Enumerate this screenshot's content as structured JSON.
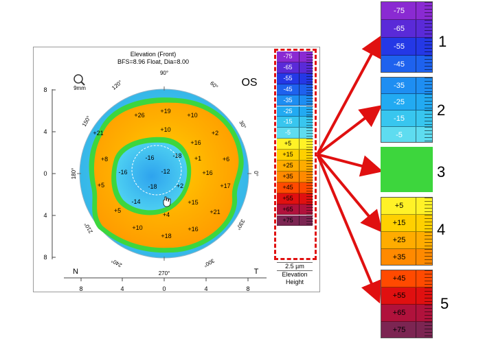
{
  "map": {
    "title": "Elevation (Front)",
    "subtitle": "BFS=8.96 Float, Dia=8.00",
    "eye": "OS",
    "zoom_label": "9mm",
    "axis_top": "90°",
    "angle_labels": [
      "120°",
      "60°",
      "150°",
      "30°",
      "180°",
      "0°",
      "210°",
      "330°",
      "240°",
      "300°",
      "270°"
    ],
    "y_ticks": [
      "8",
      "4",
      "0",
      "4",
      "8"
    ],
    "x_ticks": [
      "8",
      "4",
      "0",
      "4",
      "8"
    ],
    "nasal": "N",
    "temporal": "T",
    "values": [
      "+26",
      "+19",
      "+10",
      "+21",
      "+10",
      "+2",
      "+16",
      "+8",
      "-16",
      "-18",
      "+1",
      "+6",
      "+16",
      "-16",
      "-12",
      "+5",
      "-18",
      "+2",
      "+17",
      "-14",
      "+15",
      "+5",
      "+4",
      "+21",
      "+10",
      "+18",
      "+16"
    ]
  },
  "scale": {
    "rows": [
      {
        "label": "-75",
        "color": "#8a2ad2"
      },
      {
        "label": "-65",
        "color": "#5a2ad8"
      },
      {
        "label": "-55",
        "color": "#2438e6"
      },
      {
        "label": "-45",
        "color": "#1e62ee"
      },
      {
        "label": "-35",
        "color": "#1e8ef2"
      },
      {
        "label": "-25",
        "color": "#22aaf2"
      },
      {
        "label": "-15",
        "color": "#38c6ef"
      },
      {
        "label": "-5",
        "color": "#5edcf0"
      },
      {
        "label": "+5",
        "color": "#fff227"
      },
      {
        "label": "+15",
        "color": "#ffd000"
      },
      {
        "label": "+25",
        "color": "#ffac00"
      },
      {
        "label": "+35",
        "color": "#ff8a00"
      },
      {
        "label": "+45",
        "color": "#ff4a00"
      },
      {
        "label": "+55",
        "color": "#e01010"
      },
      {
        "label": "+65",
        "color": "#b0123c"
      },
      {
        "label": "+75",
        "color": "#7c2552"
      }
    ],
    "step": "2.5 µm",
    "type1": "Elevation",
    "type2": "Height"
  },
  "zoom_panels": [
    {
      "number": "1",
      "labels": [
        "-75",
        "-65",
        "-55",
        "-45"
      ]
    },
    {
      "number": "2",
      "labels": [
        "-35",
        "-25",
        "-15",
        "-5"
      ]
    },
    {
      "number": "3",
      "labels": []
    },
    {
      "number": "4",
      "labels": [
        "+5",
        "+15",
        "+25",
        "+35"
      ]
    },
    {
      "number": "5",
      "labels": [
        "+45",
        "+55",
        "+65",
        "+75"
      ]
    }
  ],
  "colors": {
    "arrow": "#e01010",
    "green_zone": "#3dd63d"
  }
}
